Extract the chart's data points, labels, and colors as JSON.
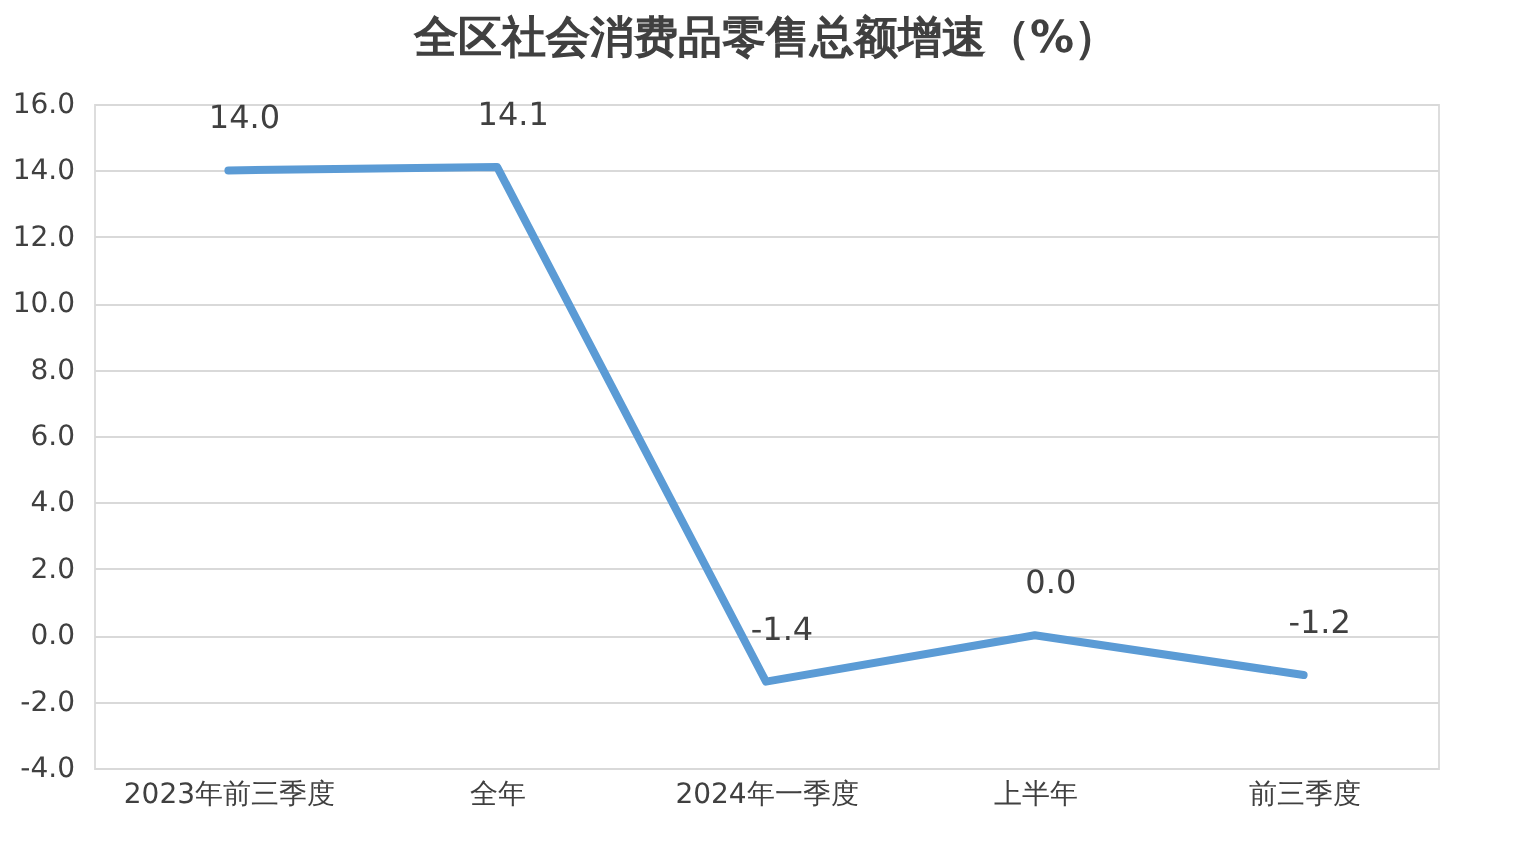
{
  "chart_data": {
    "type": "line",
    "title": "全区社会消费品零售总额增速（%）",
    "categories": [
      "2023年前三季度",
      "全年",
      "2024年一季度",
      "上半年",
      "前三季度"
    ],
    "series": [
      {
        "color": "#5b9bd5",
        "values": [
          14.0,
          14.1,
          -1.4,
          0.0,
          -1.2
        ],
        "value_labels": [
          "14.0",
          "14.1",
          "-1.4",
          "0.0",
          "-1.2"
        ]
      }
    ],
    "ylim": [
      -4,
      16
    ],
    "yticks": [
      {
        "value": -4,
        "label": "-4.0"
      },
      {
        "value": -2,
        "label": "-2.0"
      },
      {
        "value": 0,
        "label": "0.0"
      },
      {
        "value": 2,
        "label": "2.0"
      },
      {
        "value": 4,
        "label": "4.0"
      },
      {
        "value": 6,
        "label": "6.0"
      },
      {
        "value": 8,
        "label": "8.0"
      },
      {
        "value": 10,
        "label": "10.0"
      },
      {
        "value": 12,
        "label": "12.0"
      },
      {
        "value": 14,
        "label": "14.0"
      },
      {
        "value": 16,
        "label": "16.0"
      }
    ],
    "grid": "y",
    "marker": "none",
    "line_style": "solid"
  }
}
